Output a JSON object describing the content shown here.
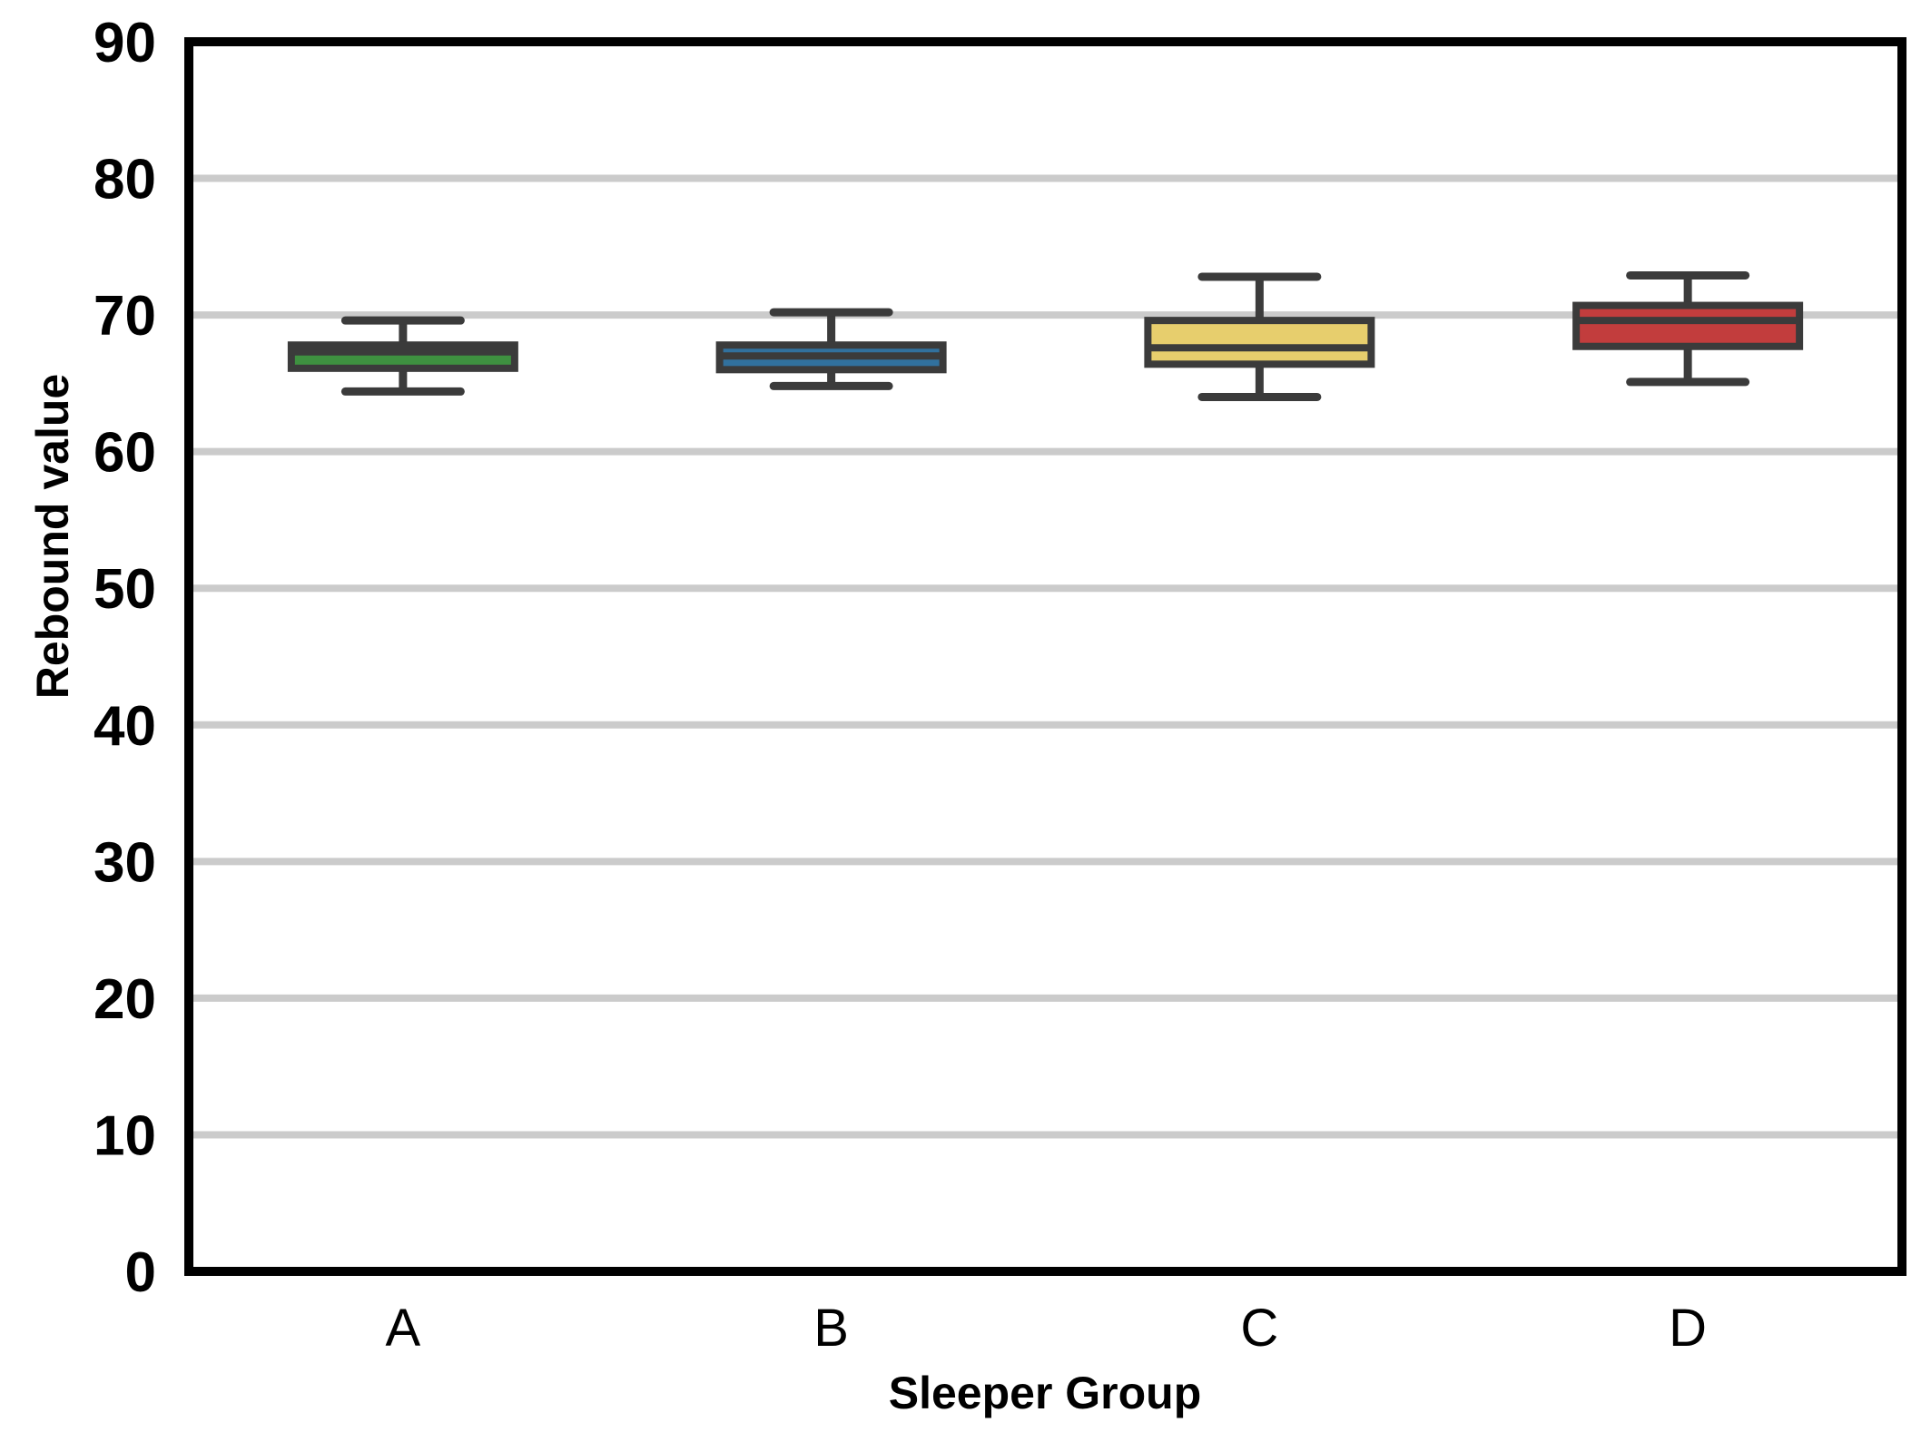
{
  "chart_data": {
    "type": "box",
    "title": "",
    "xlabel": "Sleeper Group",
    "ylabel": "Rebound value",
    "categories": [
      "A",
      "B",
      "C",
      "D"
    ],
    "series": [
      {
        "name": "A",
        "min": 64.4,
        "q1": 66.1,
        "median": 67.3,
        "q3": 67.8,
        "max": 69.6,
        "fill_color": "#3e9140"
      },
      {
        "name": "B",
        "min": 64.8,
        "q1": 66.0,
        "median": 67.0,
        "q3": 67.8,
        "max": 70.2,
        "fill_color": "#31719e"
      },
      {
        "name": "C",
        "min": 64.0,
        "q1": 66.4,
        "median": 67.6,
        "q3": 69.6,
        "max": 72.8,
        "fill_color": "#e7ce6d"
      },
      {
        "name": "D",
        "min": 65.1,
        "q1": 67.7,
        "median": 69.6,
        "q3": 70.7,
        "max": 72.9,
        "fill_color": "#c23d3d"
      }
    ],
    "ylim": [
      0,
      90
    ],
    "yticks": [
      0,
      10,
      20,
      30,
      40,
      50,
      60,
      70,
      80,
      90
    ],
    "grid": "horizontal",
    "legend": "none",
    "colors": {
      "box_edge": "#3b3b3b",
      "gridline": "#cbcbcb",
      "spine": "#000000",
      "background": "#ffffff",
      "tick_text": "#000000"
    }
  }
}
